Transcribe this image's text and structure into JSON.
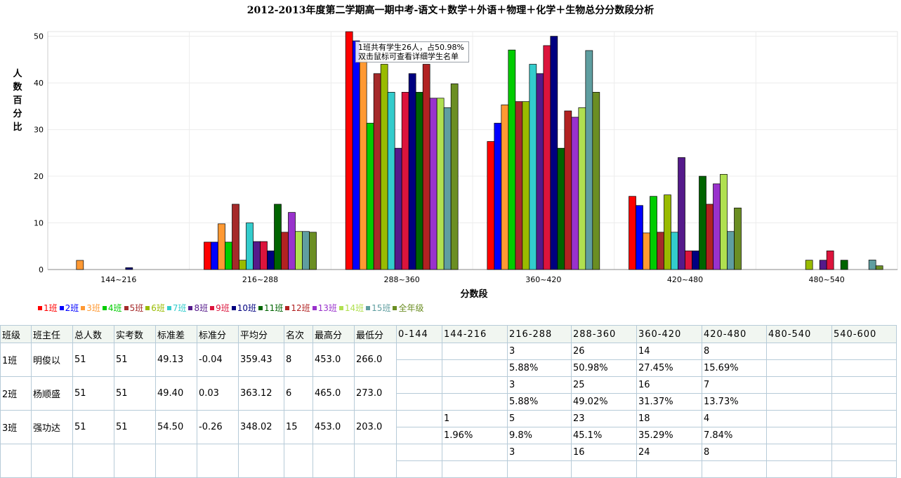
{
  "chart_data": {
    "type": "bar",
    "title": "2012-2013年度第二学期高一期中考-语文＋数学＋外语＋物理＋化学＋生物总分分数段分析",
    "xlabel": "分数段",
    "ylabel": "人数百分比",
    "categories": [
      "144~216",
      "216~288",
      "288~360",
      "360~420",
      "420~480",
      "480~540"
    ],
    "ylim": [
      0,
      51
    ],
    "yticks": [
      0,
      10,
      20,
      30,
      40,
      50
    ],
    "grid": true,
    "legend_position": "bottom-left",
    "series": [
      {
        "name": "1班",
        "color": "#ff0000",
        "values": [
          0,
          5.88,
          50.98,
          27.45,
          15.69,
          0
        ]
      },
      {
        "name": "2班",
        "color": "#0000ff",
        "values": [
          0,
          5.88,
          49.02,
          31.37,
          13.73,
          0
        ]
      },
      {
        "name": "3班",
        "color": "#ff9933",
        "values": [
          1.96,
          9.8,
          45.1,
          35.29,
          7.84,
          0
        ]
      },
      {
        "name": "4班",
        "color": "#00cc00",
        "values": [
          0,
          5.88,
          31.37,
          47.06,
          15.69,
          0
        ]
      },
      {
        "name": "5班",
        "color": "#a52a2a",
        "values": [
          0,
          14,
          42,
          36,
          8,
          0
        ]
      },
      {
        "name": "6班",
        "color": "#99bb00",
        "values": [
          0,
          2,
          44,
          36,
          16,
          2
        ]
      },
      {
        "name": "7班",
        "color": "#33cccc",
        "values": [
          0,
          10,
          38,
          44,
          8,
          0
        ]
      },
      {
        "name": "8班",
        "color": "#551a8b",
        "values": [
          0,
          6,
          26,
          42,
          24,
          2
        ]
      },
      {
        "name": "9班",
        "color": "#dc143c",
        "values": [
          0,
          6,
          38,
          48,
          4,
          4
        ]
      },
      {
        "name": "10班",
        "color": "#000080",
        "values": [
          0.4,
          4,
          42,
          50,
          4,
          0
        ]
      },
      {
        "name": "11班",
        "color": "#006400",
        "values": [
          0,
          14,
          38,
          26,
          20,
          2
        ]
      },
      {
        "name": "12班",
        "color": "#b22222",
        "values": [
          0,
          8,
          44,
          34,
          14,
          0
        ]
      },
      {
        "name": "13班",
        "color": "#9932cc",
        "values": [
          0,
          12.24,
          36.73,
          32.65,
          18.37,
          0
        ]
      },
      {
        "name": "14班",
        "color": "#b0e050",
        "values": [
          0,
          8.16,
          36.73,
          34.69,
          20.41,
          0
        ]
      },
      {
        "name": "15班",
        "color": "#5f9ea0",
        "values": [
          0,
          8.16,
          34.69,
          46.94,
          8.16,
          2.04
        ]
      },
      {
        "name": "全年级",
        "color": "#6b8e23",
        "values": [
          0,
          8,
          39.8,
          38,
          13.2,
          0.8
        ]
      }
    ]
  },
  "tooltip": {
    "line1": "1班共有学生26人，占50.98%",
    "line2": "双击鼠标可查看详细学生名单"
  },
  "table": {
    "headers": [
      "班级",
      "班主任",
      "总人数",
      "实考数",
      "标准差",
      "标准分",
      "平均分",
      "名次",
      "最高分",
      "最低分"
    ],
    "bands": [
      "0-144",
      "144-216",
      "216-288",
      "288-360",
      "360-420",
      "420-480",
      "480-540",
      "540-600"
    ],
    "rows": [
      {
        "class": "1班",
        "teacher": "明俊以",
        "total": "51",
        "tested": "51",
        "std_dev": "49.13",
        "std_score": "-0.04",
        "avg": "359.43",
        "rank": "8",
        "max": "453.0",
        "min": "266.0",
        "counts": [
          "",
          "",
          "3",
          "26",
          "14",
          "8",
          "",
          ""
        ],
        "percents": [
          "",
          "",
          "5.88%",
          "50.98%",
          "27.45%",
          "15.69%",
          "",
          ""
        ]
      },
      {
        "class": "2班",
        "teacher": "杨顺盛",
        "total": "51",
        "tested": "51",
        "std_dev": "49.40",
        "std_score": "0.03",
        "avg": "363.12",
        "rank": "6",
        "max": "465.0",
        "min": "273.0",
        "counts": [
          "",
          "",
          "3",
          "25",
          "16",
          "7",
          "",
          ""
        ],
        "percents": [
          "",
          "",
          "5.88%",
          "49.02%",
          "31.37%",
          "13.73%",
          "",
          ""
        ]
      },
      {
        "class": "3班",
        "teacher": "强功达",
        "total": "51",
        "tested": "51",
        "std_dev": "54.50",
        "std_score": "-0.26",
        "avg": "348.02",
        "rank": "15",
        "max": "453.0",
        "min": "203.0",
        "counts": [
          "",
          "1",
          "5",
          "23",
          "18",
          "4",
          "",
          ""
        ],
        "percents": [
          "",
          "1.96%",
          "9.8%",
          "45.1%",
          "35.29%",
          "7.84%",
          "",
          ""
        ]
      },
      {
        "class": "",
        "teacher": "",
        "total": "",
        "tested": "",
        "std_dev": "",
        "std_score": "",
        "avg": "",
        "rank": "",
        "max": "",
        "min": "",
        "counts": [
          "",
          "",
          "3",
          "16",
          "24",
          "8",
          "",
          ""
        ],
        "percents": [
          "",
          "",
          "",
          "",
          "",
          "",
          "",
          ""
        ]
      }
    ]
  }
}
